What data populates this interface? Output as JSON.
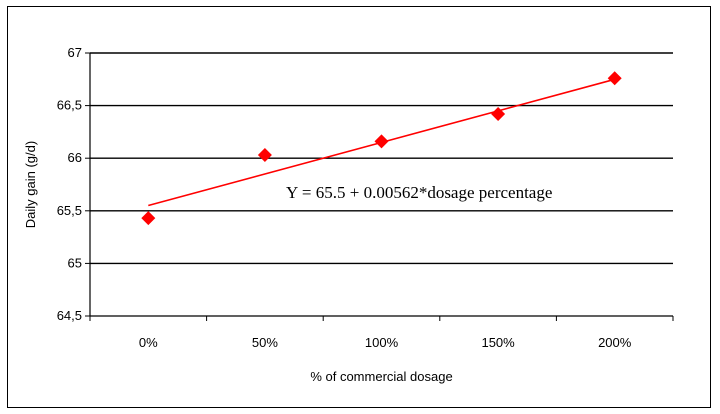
{
  "chart_data": {
    "type": "scatter",
    "categories": [
      "0%",
      "50%",
      "100%",
      "150%",
      "200%"
    ],
    "x": [
      0,
      50,
      100,
      150,
      200
    ],
    "series": [
      {
        "values": [
          65.43,
          66.03,
          66.16,
          66.42,
          66.76
        ],
        "color": "#ff0000",
        "marker": "diamond"
      }
    ],
    "trendline": {
      "intercept": 65.5,
      "slope": 0.00562,
      "x_range": [
        0,
        200
      ],
      "y_range": [
        65.55,
        66.75
      ],
      "color": "#ff0000"
    },
    "annotation": "Y = 65.5 + 0.00562*dosage percentage",
    "xlabel": "% of commercial dosage",
    "ylabel": "Daily gain (g/d)",
    "ylim": [
      64.5,
      67
    ],
    "yticks": [
      64.5,
      65,
      65.5,
      66,
      66.5,
      67
    ],
    "ytick_labels": [
      "64,5",
      "65",
      "65,5",
      "66",
      "66,5",
      "67"
    ],
    "grid": true
  }
}
